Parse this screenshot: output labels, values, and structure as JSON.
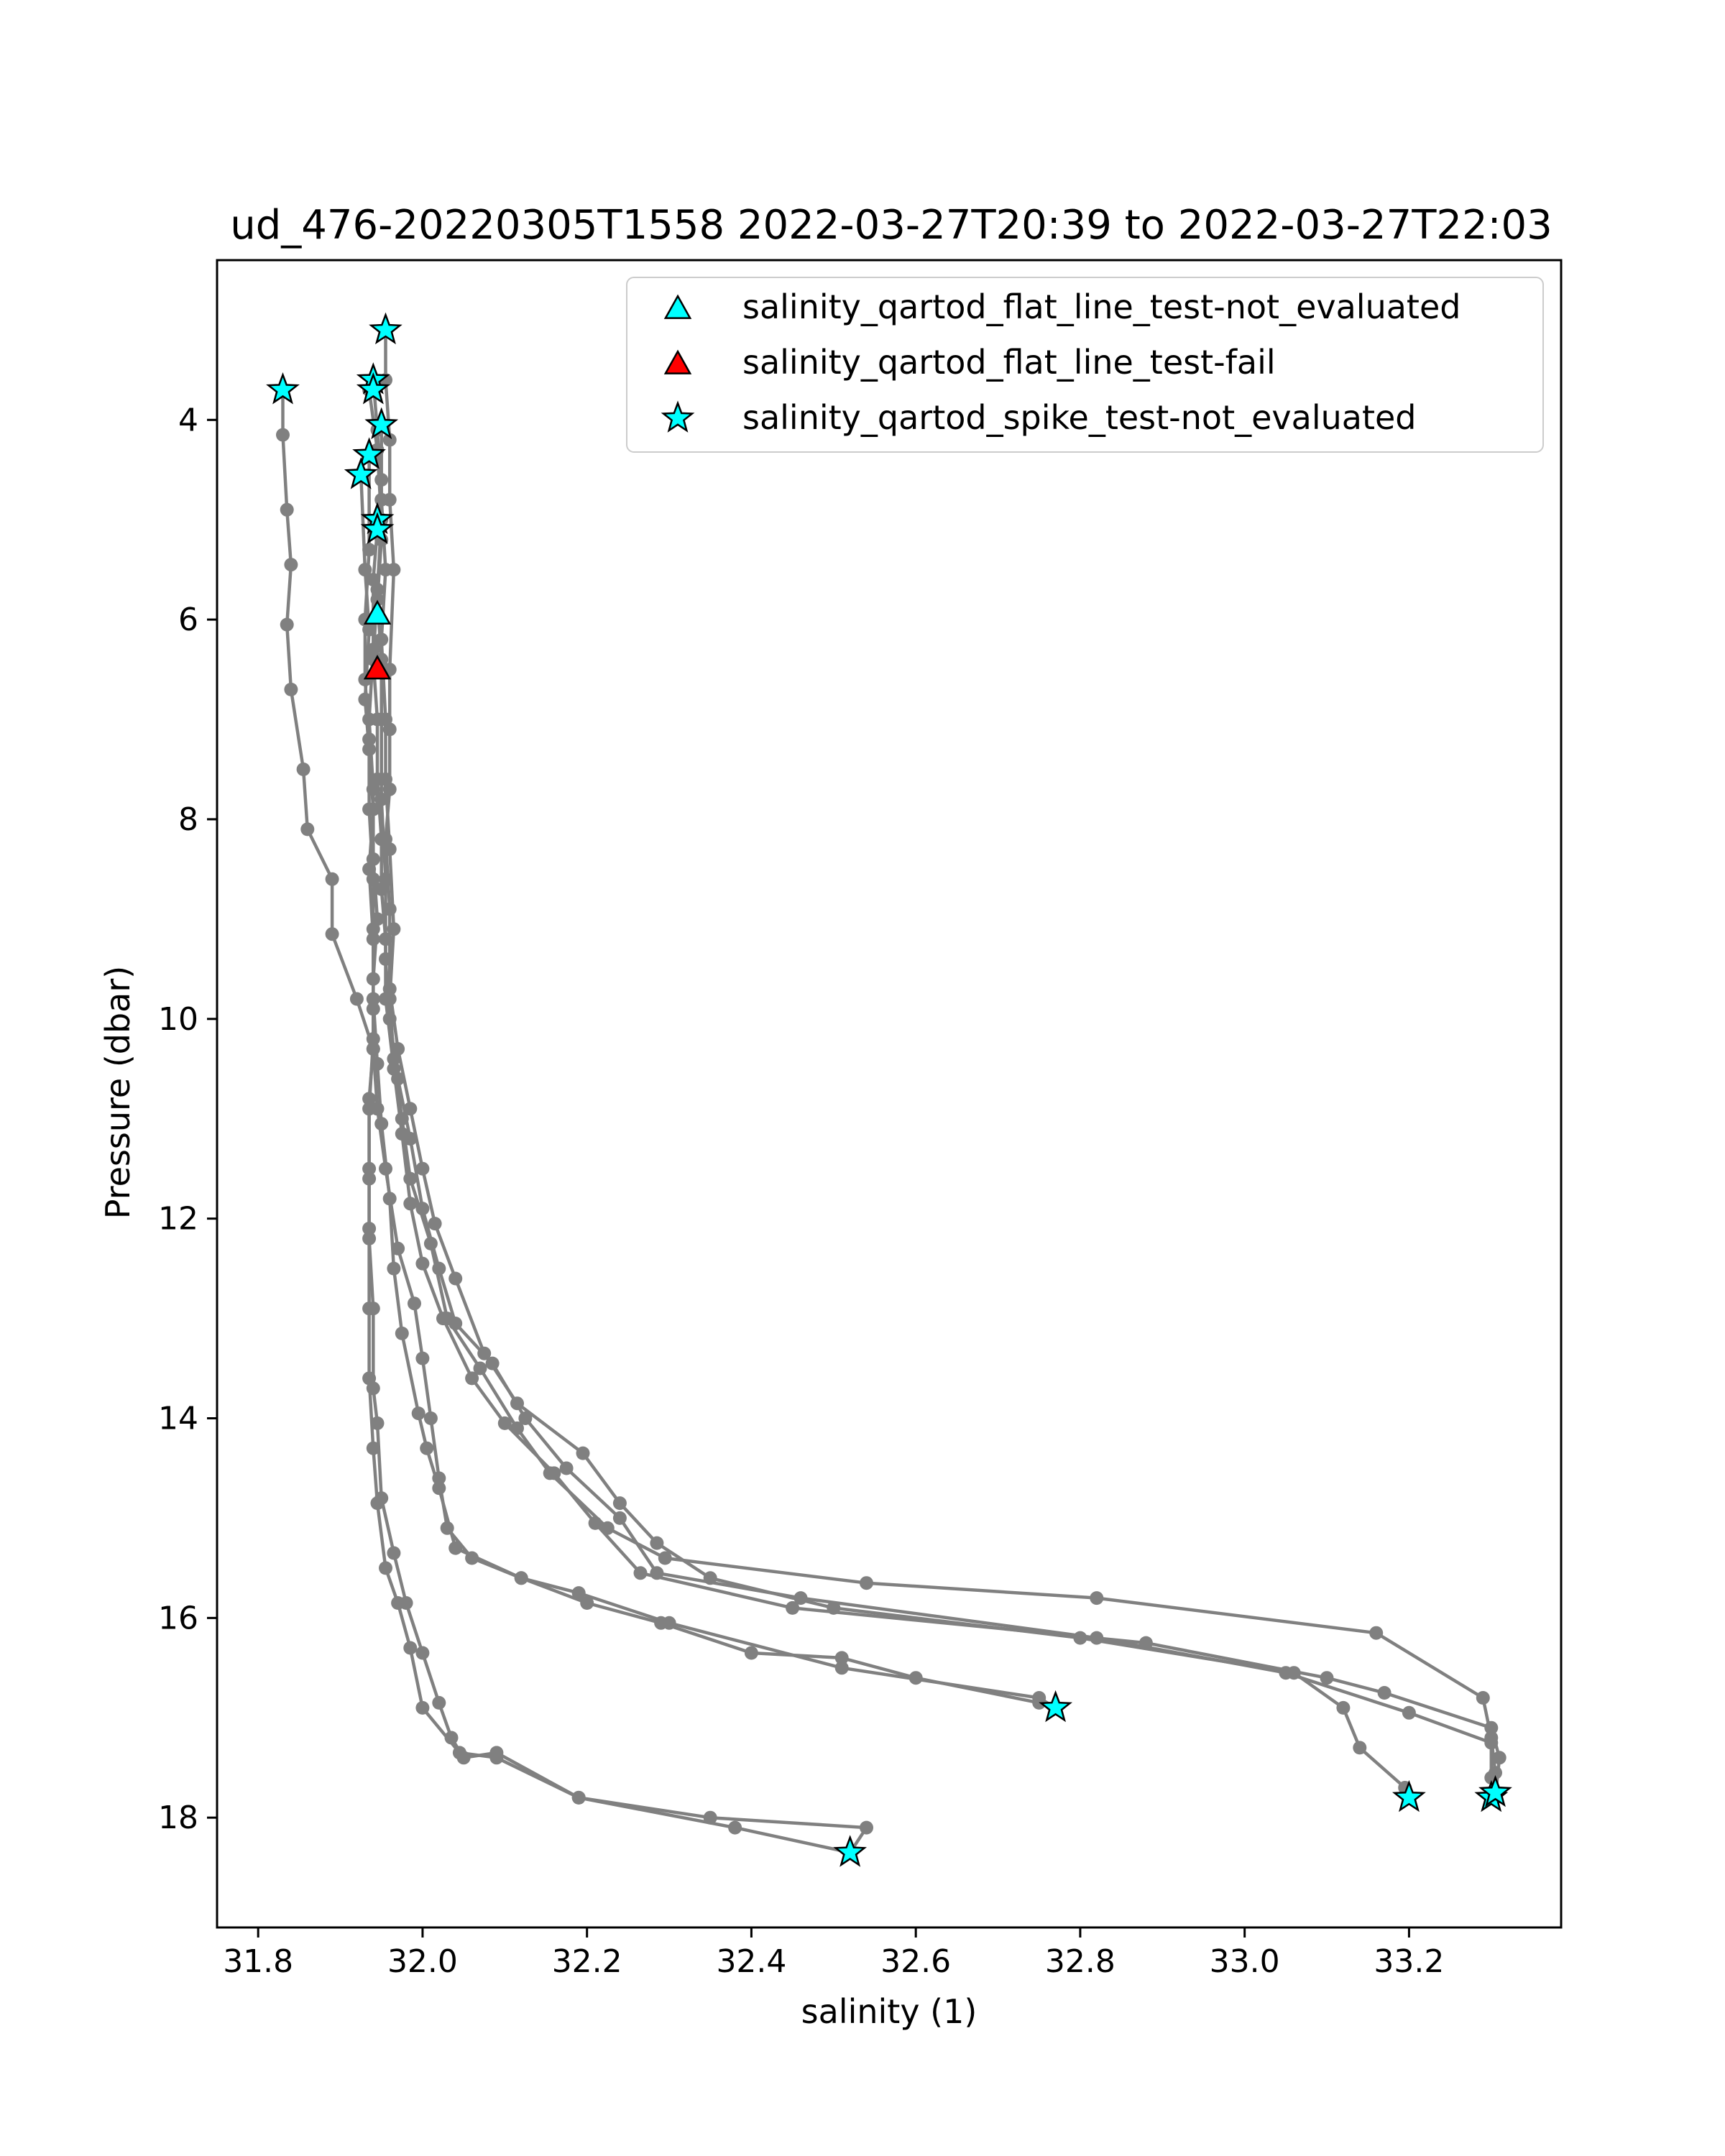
{
  "chart_data": {
    "type": "line",
    "title": "ud_476-20220305T1558 2022-03-27T20:39 to 2022-03-27T22:03",
    "xlabel": "salinity (1)",
    "ylabel": "Pressure (dbar)",
    "xlim": [
      31.75,
      33.385
    ],
    "ylim": [
      19.1,
      2.4
    ],
    "y_inverted": true,
    "grid": false,
    "legend_position": "upper right",
    "xticks": [
      31.8,
      32.0,
      32.2,
      32.4,
      32.6,
      32.8,
      33.0,
      33.2
    ],
    "xtick_labels": [
      "31.8",
      "32.0",
      "32.2",
      "32.4",
      "32.6",
      "32.8",
      "33.0",
      "33.2"
    ],
    "yticks": [
      4,
      6,
      8,
      10,
      12,
      14,
      16,
      18
    ],
    "ytick_labels": [
      "4",
      "6",
      "8",
      "10",
      "12",
      "14",
      "16",
      "18"
    ],
    "colors": {
      "profile_line": "#808080",
      "marker_fill_cyan": "#00ffff",
      "marker_fill_red": "#ff0000",
      "marker_edge": "#000000"
    },
    "legend": [
      {
        "label": "salinity_qartod_flat_line_test-not_evaluated",
        "marker": "triangle",
        "color": "#00ffff"
      },
      {
        "label": "salinity_qartod_flat_line_test-fail",
        "marker": "triangle",
        "color": "#ff0000"
      },
      {
        "label": "salinity_qartod_spike_test-not_evaluated",
        "marker": "star",
        "color": "#00ffff"
      }
    ],
    "profiles": [
      {
        "points": [
          [
            31.83,
            3.7
          ],
          [
            31.83,
            4.15
          ],
          [
            31.835,
            4.9
          ],
          [
            31.84,
            5.45
          ],
          [
            31.835,
            6.05
          ],
          [
            31.84,
            6.7
          ],
          [
            31.855,
            7.5
          ],
          [
            31.86,
            8.1
          ],
          [
            31.89,
            8.6
          ],
          [
            31.89,
            9.15
          ],
          [
            31.92,
            9.8
          ],
          [
            31.94,
            10.3
          ],
          [
            31.945,
            10.9
          ],
          [
            31.955,
            11.5
          ],
          [
            31.97,
            12.3
          ],
          [
            31.99,
            12.85
          ],
          [
            32.0,
            13.4
          ],
          [
            32.01,
            14.0
          ],
          [
            32.02,
            14.6
          ],
          [
            32.03,
            15.1
          ],
          [
            32.06,
            15.4
          ],
          [
            32.12,
            15.6
          ],
          [
            32.2,
            15.85
          ],
          [
            32.29,
            16.05
          ],
          [
            32.4,
            16.35
          ],
          [
            32.51,
            16.4
          ],
          [
            32.6,
            16.6
          ],
          [
            32.75,
            16.85
          ],
          [
            32.77,
            16.9
          ]
        ]
      },
      {
        "points": [
          [
            31.955,
            3.1
          ],
          [
            31.955,
            3.6
          ],
          [
            31.96,
            4.2
          ],
          [
            31.96,
            4.8
          ],
          [
            31.965,
            5.5
          ],
          [
            31.96,
            6.5
          ],
          [
            31.96,
            7.1
          ],
          [
            31.96,
            7.7
          ],
          [
            31.955,
            8.2
          ],
          [
            31.96,
            8.9
          ],
          [
            31.96,
            9.7
          ],
          [
            31.97,
            10.3
          ],
          [
            31.985,
            10.9
          ],
          [
            32.0,
            11.5
          ],
          [
            32.015,
            12.05
          ],
          [
            32.04,
            12.6
          ],
          [
            32.075,
            13.35
          ],
          [
            32.115,
            13.85
          ],
          [
            32.195,
            14.35
          ],
          [
            32.24,
            14.85
          ],
          [
            32.285,
            15.25
          ],
          [
            32.35,
            15.6
          ],
          [
            32.5,
            15.9
          ],
          [
            32.8,
            16.2
          ],
          [
            33.06,
            16.55
          ],
          [
            33.12,
            16.9
          ],
          [
            33.14,
            17.3
          ],
          [
            33.195,
            17.7
          ],
          [
            33.2,
            17.8
          ]
        ]
      },
      {
        "points": [
          [
            31.94,
            3.6
          ],
          [
            31.945,
            4.1
          ],
          [
            31.95,
            4.8
          ],
          [
            31.955,
            5.5
          ],
          [
            31.95,
            6.2
          ],
          [
            31.955,
            7.0
          ],
          [
            31.955,
            7.6
          ],
          [
            31.96,
            8.3
          ],
          [
            31.965,
            9.1
          ],
          [
            31.96,
            9.8
          ],
          [
            31.965,
            10.4
          ],
          [
            31.975,
            11.0
          ],
          [
            31.985,
            11.6
          ],
          [
            32.01,
            12.25
          ],
          [
            32.03,
            13.0
          ],
          [
            32.07,
            13.5
          ],
          [
            32.115,
            14.1
          ],
          [
            32.155,
            14.55
          ],
          [
            32.225,
            15.1
          ],
          [
            32.295,
            15.4
          ],
          [
            32.54,
            15.65
          ],
          [
            32.82,
            15.8
          ],
          [
            33.16,
            16.15
          ],
          [
            33.29,
            16.8
          ],
          [
            33.3,
            17.2
          ],
          [
            33.305,
            17.55
          ],
          [
            33.3,
            17.8
          ]
        ]
      },
      {
        "points": [
          [
            31.935,
            3.7
          ],
          [
            31.945,
            4.3
          ],
          [
            31.95,
            5.0
          ],
          [
            31.945,
            5.7
          ],
          [
            31.94,
            6.4
          ],
          [
            31.945,
            7.0
          ],
          [
            31.945,
            7.6
          ],
          [
            31.95,
            8.2
          ],
          [
            31.95,
            8.7
          ],
          [
            31.955,
            9.2
          ],
          [
            31.955,
            9.8
          ],
          [
            31.965,
            10.5
          ],
          [
            31.975,
            11.15
          ],
          [
            31.985,
            11.85
          ],
          [
            32.0,
            12.45
          ],
          [
            32.025,
            13.0
          ],
          [
            32.06,
            13.6
          ],
          [
            32.1,
            14.05
          ],
          [
            32.16,
            14.55
          ],
          [
            32.21,
            15.05
          ],
          [
            32.265,
            15.55
          ],
          [
            32.45,
            15.9
          ],
          [
            32.88,
            16.25
          ],
          [
            33.1,
            16.6
          ],
          [
            33.17,
            16.75
          ],
          [
            33.3,
            17.1
          ],
          [
            33.31,
            17.4
          ],
          [
            33.305,
            17.8
          ]
        ]
      },
      {
        "points": [
          [
            31.95,
            4.05
          ],
          [
            31.95,
            4.6
          ],
          [
            31.95,
            5.2
          ],
          [
            31.945,
            5.8
          ],
          [
            31.95,
            6.4
          ],
          [
            31.95,
            7.0
          ],
          [
            31.95,
            7.8
          ],
          [
            31.955,
            8.6
          ],
          [
            31.955,
            9.4
          ],
          [
            31.96,
            10.0
          ],
          [
            31.97,
            10.6
          ],
          [
            31.985,
            11.2
          ],
          [
            32.0,
            11.9
          ],
          [
            32.02,
            12.5
          ],
          [
            32.04,
            13.05
          ],
          [
            32.085,
            13.45
          ],
          [
            32.125,
            14.0
          ],
          [
            32.175,
            14.5
          ],
          [
            32.24,
            15.0
          ],
          [
            32.285,
            15.55
          ],
          [
            32.46,
            15.8
          ],
          [
            32.82,
            16.2
          ],
          [
            33.05,
            16.55
          ],
          [
            33.2,
            16.95
          ],
          [
            33.3,
            17.25
          ],
          [
            33.3,
            17.6
          ],
          [
            33.3,
            17.8
          ]
        ]
      },
      {
        "points": [
          [
            31.925,
            4.55
          ],
          [
            31.93,
            5.5
          ],
          [
            31.935,
            6.1
          ],
          [
            31.93,
            6.8
          ],
          [
            31.935,
            7.3
          ],
          [
            31.94,
            7.9
          ],
          [
            31.935,
            8.5
          ],
          [
            31.94,
            9.2
          ],
          [
            31.94,
            9.8
          ],
          [
            31.945,
            10.45
          ],
          [
            31.95,
            11.05
          ],
          [
            31.96,
            11.8
          ],
          [
            31.965,
            12.5
          ],
          [
            31.975,
            13.15
          ],
          [
            31.995,
            13.95
          ],
          [
            32.005,
            14.3
          ],
          [
            32.02,
            14.7
          ],
          [
            32.04,
            15.3
          ],
          [
            32.12,
            15.6
          ],
          [
            32.19,
            15.75
          ],
          [
            32.3,
            16.05
          ],
          [
            32.51,
            16.5
          ],
          [
            32.75,
            16.8
          ],
          [
            32.77,
            16.9
          ]
        ]
      },
      {
        "points": [
          [
            31.935,
            4.35
          ],
          [
            31.935,
            5.3
          ],
          [
            31.93,
            6.0
          ],
          [
            31.93,
            6.6
          ],
          [
            31.935,
            7.2
          ],
          [
            31.935,
            7.9
          ],
          [
            31.94,
            8.6
          ],
          [
            31.94,
            9.1
          ],
          [
            31.94,
            9.9
          ],
          [
            31.94,
            10.3
          ],
          [
            31.935,
            10.8
          ],
          [
            31.935,
            11.6
          ],
          [
            31.935,
            12.1
          ],
          [
            31.935,
            12.9
          ],
          [
            31.935,
            13.6
          ],
          [
            31.94,
            14.3
          ],
          [
            31.945,
            14.85
          ],
          [
            31.955,
            15.5
          ],
          [
            31.97,
            15.85
          ],
          [
            31.985,
            16.3
          ],
          [
            32.0,
            16.9
          ],
          [
            32.045,
            17.35
          ],
          [
            32.09,
            17.4
          ],
          [
            32.19,
            17.8
          ],
          [
            32.35,
            18.0
          ],
          [
            32.54,
            18.1
          ],
          [
            32.52,
            18.35
          ]
        ]
      },
      {
        "points": [
          [
            31.945,
            5.1
          ],
          [
            31.94,
            5.6
          ],
          [
            31.94,
            6.3
          ],
          [
            31.935,
            7.0
          ],
          [
            31.94,
            7.7
          ],
          [
            31.94,
            8.4
          ],
          [
            31.945,
            9.0
          ],
          [
            31.94,
            9.6
          ],
          [
            31.94,
            10.2
          ],
          [
            31.935,
            10.9
          ],
          [
            31.935,
            11.5
          ],
          [
            31.935,
            12.2
          ],
          [
            31.94,
            12.9
          ],
          [
            31.94,
            13.7
          ],
          [
            31.945,
            14.05
          ],
          [
            31.95,
            14.8
          ],
          [
            31.965,
            15.35
          ],
          [
            31.98,
            15.85
          ],
          [
            32.0,
            16.35
          ],
          [
            32.02,
            16.85
          ],
          [
            32.035,
            17.2
          ],
          [
            32.05,
            17.4
          ],
          [
            32.09,
            17.35
          ],
          [
            32.19,
            17.8
          ],
          [
            32.38,
            18.1
          ],
          [
            32.52,
            18.35
          ]
        ]
      }
    ],
    "flat_line_not_evaluated": [
      [
        31.945,
        5.95
      ]
    ],
    "flat_line_fail": [
      [
        31.945,
        6.5
      ]
    ],
    "spike_not_evaluated": [
      [
        31.83,
        3.7
      ],
      [
        31.955,
        3.1
      ],
      [
        31.94,
        3.6
      ],
      [
        31.94,
        3.7
      ],
      [
        31.95,
        4.05
      ],
      [
        31.935,
        4.35
      ],
      [
        31.925,
        4.55
      ],
      [
        31.945,
        5.0
      ],
      [
        31.945,
        5.1
      ],
      [
        32.77,
        16.9
      ],
      [
        33.2,
        17.8
      ],
      [
        33.3,
        17.8
      ],
      [
        33.305,
        17.75
      ],
      [
        32.52,
        18.35
      ]
    ]
  }
}
